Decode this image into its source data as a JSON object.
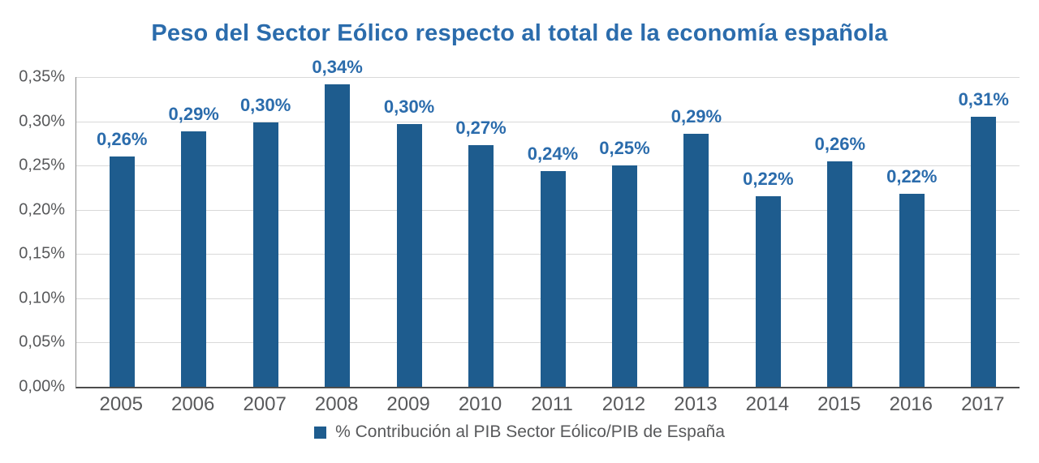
{
  "title": "Peso del Sector Eólico respecto al total de la economía española",
  "legend": {
    "label": "% Contribución al PIB Sector Eólico/PIB de España"
  },
  "colors": {
    "bar": "#1E5C8E",
    "title": "#2B6CAC",
    "data_label": "#2B6CAC",
    "axis_text": "#58595B",
    "gridline": "#D9D9D9",
    "x_axis_line": "#4D4D4D",
    "y_axis_line": "#8A8A8A"
  },
  "chart_data": {
    "type": "bar",
    "title": "Peso del Sector Eólico respecto al total de la economía española",
    "categories": [
      "2005",
      "2006",
      "2007",
      "2008",
      "2009",
      "2010",
      "2011",
      "2012",
      "2013",
      "2014",
      "2015",
      "2016",
      "2017"
    ],
    "values": [
      0.26,
      0.289,
      0.299,
      0.342,
      0.297,
      0.273,
      0.244,
      0.25,
      0.286,
      0.215,
      0.255,
      0.218,
      0.305
    ],
    "bar_labels": [
      "0,26%",
      "0,29%",
      "0,30%",
      "0,34%",
      "0,30%",
      "0,27%",
      "0,24%",
      "0,25%",
      "0,29%",
      "0,22%",
      "0,26%",
      "0,22%",
      "0,31%"
    ],
    "xlabel": "",
    "ylabel": "",
    "ylim": [
      0,
      0.35
    ],
    "yticks": {
      "values": [
        0,
        0.05,
        0.1,
        0.15,
        0.2,
        0.25,
        0.3,
        0.35
      ],
      "labels": [
        "0,00%",
        "0,05%",
        "0,10%",
        "0,15%",
        "0,20%",
        "0,25%",
        "0,30%",
        "0,35%"
      ]
    },
    "grid": "horizontal",
    "legend_entries": [
      "% Contribución al PIB Sector Eólico/PIB de España"
    ],
    "legend_position": "bottom",
    "number_format": "comma-decimal (es-ES)"
  }
}
